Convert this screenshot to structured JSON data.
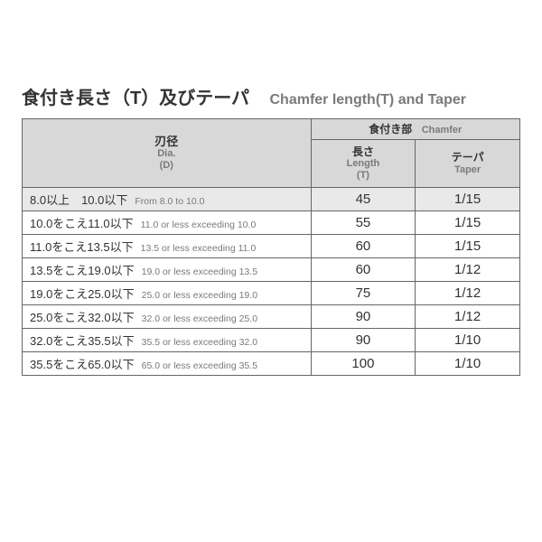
{
  "title": {
    "jp": "食付き長さ（T）及びテーパ",
    "en": "Chamfer length(T) and Taper"
  },
  "header": {
    "dia": {
      "jp": "刃径",
      "en1": "Dia.",
      "en2": "(D)"
    },
    "group": {
      "jp": "食付き部",
      "en": "Chamfer"
    },
    "length": {
      "jp": "長さ",
      "en1": "Length",
      "en2": "(T)"
    },
    "taper": {
      "jp": "テーパ",
      "en": "Taper"
    }
  },
  "rows": [
    {
      "jp": "8.0以上　10.0以下",
      "en": "From 8.0 to 10.0",
      "length": "45",
      "taper": "1/15"
    },
    {
      "jp": "10.0をこえ11.0以下",
      "en": "11.0 or less exceeding 10.0",
      "length": "55",
      "taper": "1/15"
    },
    {
      "jp": "11.0をこえ13.5以下",
      "en": "13.5 or less exceeding 11.0",
      "length": "60",
      "taper": "1/15"
    },
    {
      "jp": "13.5をこえ19.0以下",
      "en": "19.0 or less exceeding 13.5",
      "length": "60",
      "taper": "1/12"
    },
    {
      "jp": "19.0をこえ25.0以下",
      "en": "25.0 or less exceeding 19.0",
      "length": "75",
      "taper": "1/12"
    },
    {
      "jp": "25.0をこえ32.0以下",
      "en": "32.0 or less exceeding 25.0",
      "length": "90",
      "taper": "1/12"
    },
    {
      "jp": "32.0をこえ35.5以下",
      "en": "35.5 or less exceeding 32.0",
      "length": "90",
      "taper": "1/10"
    },
    {
      "jp": "35.5をこえ65.0以下",
      "en": "65.0 or less exceeding 35.5",
      "length": "100",
      "taper": "1/10"
    }
  ],
  "highlight_row_index": 0,
  "colors": {
    "header_bg": "#d8d8d8",
    "highlight_bg": "#e9e9e9",
    "border": "#666666",
    "text": "#333333",
    "subtext": "#7a7a7a",
    "page_bg": "#ffffff"
  },
  "fonts": {
    "title_jp_size": 20,
    "title_en_size": 16,
    "body_jp_size": 13,
    "body_en_size": 10.5,
    "num_size": 15
  },
  "columns": {
    "dia_pct": 58,
    "length_pct": 21,
    "taper_pct": 21
  }
}
